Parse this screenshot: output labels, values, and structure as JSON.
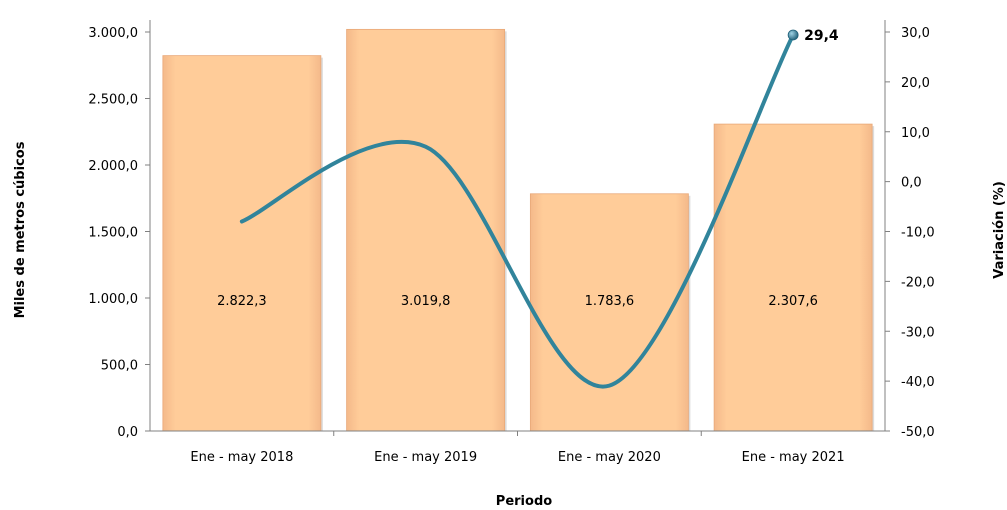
{
  "chart_data": {
    "type": "bar",
    "categories": [
      "Ene - may 2018",
      "Ene - may 2019",
      "Ene - may 2020",
      "Ene - may 2021"
    ],
    "series": [
      {
        "type": "bar",
        "axis": "left",
        "values": [
          2822.3,
          3019.8,
          1783.6,
          2307.6
        ],
        "labels": [
          "2.822,3",
          "3.019,8",
          "1.783,6",
          "2.307,6"
        ],
        "color": "#FFCC99"
      },
      {
        "type": "line",
        "axis": "right",
        "smooth": true,
        "values": [
          -8.0,
          7.0,
          -40.9,
          29.4
        ],
        "color": "#31849B",
        "highlighted_point": {
          "index": 3,
          "label": "29,4"
        }
      }
    ],
    "xlabel": "Periodo",
    "ylabel": "Miles de metros cúbicos",
    "y2label": "Variación (%)",
    "ylim": [
      0,
      3000
    ],
    "y2lim": [
      -50,
      30
    ],
    "yticks": [
      "0,0",
      "500,0",
      "1.000,0",
      "1.500,0",
      "2.000,0",
      "2.500,0",
      "3.000,0"
    ],
    "y2ticks": [
      "-50,0",
      "-40,0",
      "-30,0",
      "-20,0",
      "-10,0",
      "0,0",
      "10,0",
      "20,0",
      "30,0"
    ],
    "grid": false,
    "legend": "none"
  }
}
